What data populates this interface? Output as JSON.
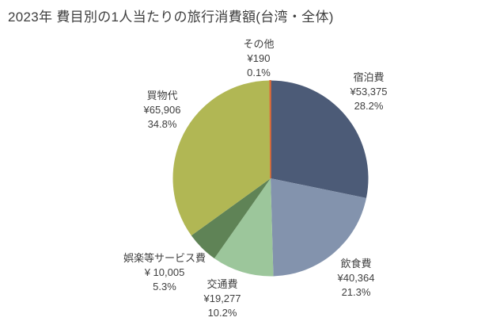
{
  "title": "2023年 費目別の1人当たりの旅行消費額(台湾・全体)",
  "chart_data": {
    "type": "pie",
    "title": "2023年 費目別の1人当たりの旅行消費額(台湾・全体)",
    "start_angle_deg": 0,
    "direction": "clockwise",
    "labels_position": "outside",
    "legend": "none",
    "slices": [
      {
        "key": "lodging",
        "label": "宿泊費",
        "value": 53375,
        "value_label": "¥53,375",
        "pct": 28.2,
        "pct_label": "28.2%",
        "color": "#4c5b77"
      },
      {
        "key": "food-drink",
        "label": "飲食費",
        "value": 40364,
        "value_label": "¥40,364",
        "pct": 21.3,
        "pct_label": "21.3%",
        "color": "#8393ad"
      },
      {
        "key": "transport",
        "label": "交通費",
        "value": 19277,
        "value_label": "¥19,277",
        "pct": 10.2,
        "pct_label": "10.2%",
        "color": "#9cc69b"
      },
      {
        "key": "entertainment-services",
        "label": "娯楽等サービス費",
        "value": 10005,
        "value_label": "¥ 10,005",
        "pct": 5.3,
        "pct_label": "5.3%",
        "color": "#5f8356"
      },
      {
        "key": "shopping",
        "label": "買物代",
        "value": 65906,
        "value_label": "¥65,906",
        "pct": 34.8,
        "pct_label": "34.8%",
        "color": "#b1b754"
      },
      {
        "key": "other",
        "label": "その他",
        "value": 190,
        "value_label": "¥190",
        "pct": 0.1,
        "pct_label": "0.1%",
        "color": "#dd6a38"
      }
    ]
  }
}
